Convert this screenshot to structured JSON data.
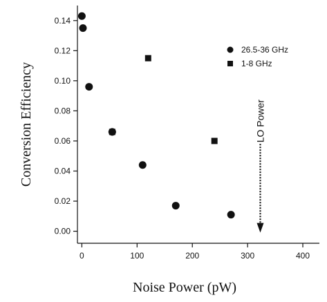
{
  "chart_data": {
    "type": "scatter",
    "xlabel": "Noise Power (pW)",
    "ylabel": "Conversion Efficiency",
    "xlim": [
      -8,
      430
    ],
    "ylim": [
      -0.008,
      0.15
    ],
    "xticks": [
      0,
      100,
      200,
      300,
      400
    ],
    "yticks": [
      0.0,
      0.02,
      0.04,
      0.06,
      0.08,
      0.1,
      0.12,
      0.14
    ],
    "ytick_labels": [
      "0.00",
      "0.02",
      "0.04",
      "0.06",
      "0.08",
      "0.10",
      "0.12",
      "0.14"
    ],
    "xtick_labels": [
      "0",
      "100",
      "200",
      "300",
      "400"
    ],
    "grid": false,
    "legend_position": "top-right",
    "series": [
      {
        "name": "26.5-36 GHz",
        "marker": "circle",
        "points": [
          {
            "x": 0,
            "y": 0.143
          },
          {
            "x": 2,
            "y": 0.135
          },
          {
            "x": 13,
            "y": 0.096
          },
          {
            "x": 55,
            "y": 0.066
          },
          {
            "x": 110,
            "y": 0.044
          },
          {
            "x": 170,
            "y": 0.017
          },
          {
            "x": 270,
            "y": 0.011
          }
        ]
      },
      {
        "name": "1-8 GHz",
        "marker": "square",
        "points": [
          {
            "x": 55,
            "y": 0.066
          },
          {
            "x": 120,
            "y": 0.115
          },
          {
            "x": 240,
            "y": 0.06
          }
        ]
      }
    ],
    "annotations": [
      {
        "text": "LO Power",
        "x": 323,
        "y_top": 0.058,
        "y_bottom": 0.0
      }
    ]
  },
  "colors": {
    "marker": "#111111",
    "axis": "#111111",
    "background": "#ffffff"
  }
}
